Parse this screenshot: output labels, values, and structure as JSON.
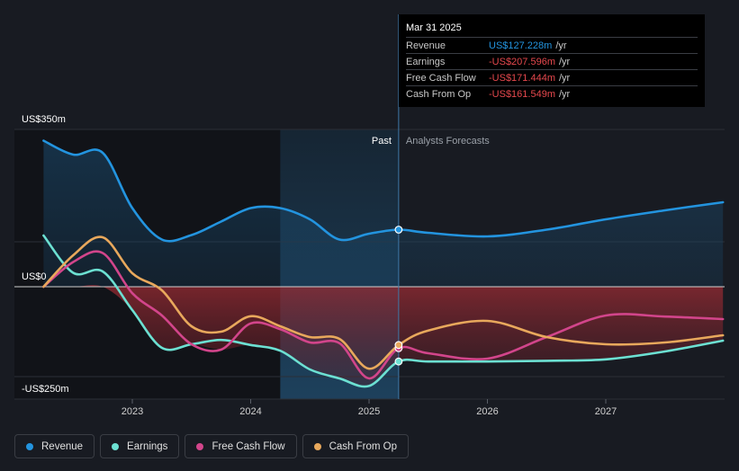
{
  "tooltip": {
    "date": "Mar 31 2025",
    "rows": [
      {
        "label": "Revenue",
        "value": "US$127.228m",
        "unit": "/yr",
        "color": "#2394df"
      },
      {
        "label": "Earnings",
        "value": "-US$207.596m",
        "unit": "/yr",
        "color": "#e5484d"
      },
      {
        "label": "Free Cash Flow",
        "value": "-US$171.444m",
        "unit": "/yr",
        "color": "#e5484d"
      },
      {
        "label": "Cash From Op",
        "value": "-US$161.549m",
        "unit": "/yr",
        "color": "#e5484d"
      }
    ]
  },
  "legend": [
    {
      "label": "Revenue",
      "color": "#2394df"
    },
    {
      "label": "Earnings",
      "color": "#6ce0d2"
    },
    {
      "label": "Free Cash Flow",
      "color": "#d2458b"
    },
    {
      "label": "Cash From Op",
      "color": "#e8a85c"
    }
  ],
  "chart_data": {
    "type": "line",
    "ylim": [
      -250,
      350
    ],
    "y_tick_labels": [
      "US$350m",
      "US$0",
      "-US$250m"
    ],
    "x_tick_labels": [
      "2023",
      "2024",
      "2025",
      "2026",
      "2027"
    ],
    "past_label": "Past",
    "forecast_label": "Analysts Forecasts",
    "divider_x": 2025.25,
    "shaded_past_start": 2024.25,
    "series": [
      {
        "name": "Revenue",
        "color": "#2394df",
        "points": [
          [
            2022.25,
            325
          ],
          [
            2022.5,
            294
          ],
          [
            2022.75,
            298
          ],
          [
            2023.0,
            175
          ],
          [
            2023.25,
            105
          ],
          [
            2023.5,
            115
          ],
          [
            2023.75,
            145
          ],
          [
            2024.0,
            175
          ],
          [
            2024.25,
            175
          ],
          [
            2024.5,
            150
          ],
          [
            2024.75,
            105
          ],
          [
            2025.0,
            118
          ],
          [
            2025.25,
            127
          ],
          [
            2025.5,
            120
          ],
          [
            2026.0,
            112
          ],
          [
            2026.5,
            127
          ],
          [
            2027.0,
            150
          ],
          [
            2027.5,
            170
          ],
          [
            2027.99,
            188
          ]
        ]
      },
      {
        "name": "Earnings",
        "color": "#6ce0d2",
        "points": [
          [
            2022.25,
            114
          ],
          [
            2022.5,
            31
          ],
          [
            2022.75,
            34
          ],
          [
            2023.0,
            -65
          ],
          [
            2023.25,
            -170
          ],
          [
            2023.5,
            -160
          ],
          [
            2023.75,
            -148
          ],
          [
            2024.0,
            -162
          ],
          [
            2024.25,
            -178
          ],
          [
            2024.5,
            -230
          ],
          [
            2024.75,
            -255
          ],
          [
            2025.0,
            -276
          ],
          [
            2025.25,
            -208
          ],
          [
            2025.5,
            -208
          ],
          [
            2026.0,
            -208
          ],
          [
            2026.5,
            -206
          ],
          [
            2027.0,
            -202
          ],
          [
            2027.5,
            -180
          ],
          [
            2027.99,
            -150
          ]
        ]
      },
      {
        "name": "Free Cash Flow",
        "color": "#d2458b",
        "points": [
          [
            2022.25,
            0
          ],
          [
            2022.5,
            55
          ],
          [
            2022.75,
            75
          ],
          [
            2023.0,
            -18
          ],
          [
            2023.25,
            -80
          ],
          [
            2023.5,
            -160
          ],
          [
            2023.75,
            -175
          ],
          [
            2024.0,
            -102
          ],
          [
            2024.25,
            -118
          ],
          [
            2024.5,
            -155
          ],
          [
            2024.75,
            -157
          ],
          [
            2025.0,
            -255
          ],
          [
            2025.25,
            -171
          ],
          [
            2025.5,
            -185
          ],
          [
            2026.0,
            -200
          ],
          [
            2026.5,
            -140
          ],
          [
            2027.0,
            -80
          ],
          [
            2027.5,
            -83
          ],
          [
            2027.99,
            -90
          ]
        ]
      },
      {
        "name": "Cash From Op",
        "color": "#e8a85c",
        "points": [
          [
            2022.25,
            0
          ],
          [
            2022.5,
            70
          ],
          [
            2022.75,
            110
          ],
          [
            2023.0,
            30
          ],
          [
            2023.25,
            -10
          ],
          [
            2023.5,
            -110
          ],
          [
            2023.75,
            -125
          ],
          [
            2024.0,
            -82
          ],
          [
            2024.25,
            -110
          ],
          [
            2024.5,
            -140
          ],
          [
            2024.75,
            -145
          ],
          [
            2025.0,
            -228
          ],
          [
            2025.25,
            -162
          ],
          [
            2025.5,
            -122
          ],
          [
            2026.0,
            -95
          ],
          [
            2026.5,
            -140
          ],
          [
            2027.0,
            -160
          ],
          [
            2027.5,
            -155
          ],
          [
            2027.99,
            -135
          ]
        ]
      }
    ]
  }
}
